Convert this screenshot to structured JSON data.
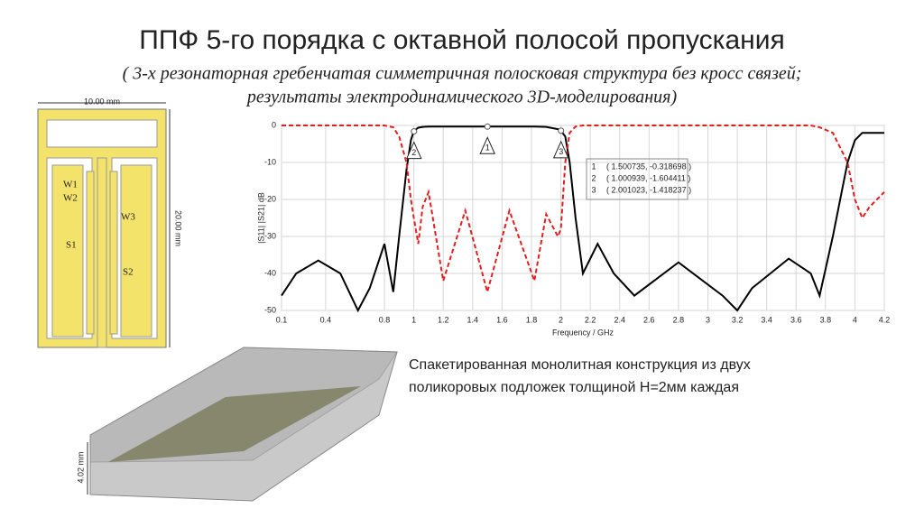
{
  "title": "ППФ 5-го порядка с октавной полосой пропускания",
  "subtitle": [
    "( 3-х резонаторная гребенчатая симметричная полосковая структура без кросс связей;",
    "результаты электродинамического 3D-моделирования)"
  ],
  "layout_drawing": {
    "width_label": "10.00 mm",
    "height_label": "20.00 mm",
    "labels": [
      "W1",
      "W2",
      "W3",
      "S1",
      "S2"
    ]
  },
  "model_3d": {
    "thickness_label": "4.02 mm"
  },
  "caption": [
    "Спакетированная монолитная конструкция из двух",
    "поликоровых подложек толщиной H=2мм каждая"
  ],
  "chart_data": {
    "type": "line",
    "xlabel": "Frequency / GHz",
    "ylabel": "|S11| |S21| dB",
    "x": [
      0.1,
      0.2,
      0.35,
      0.5,
      0.62,
      0.7,
      0.8,
      0.86,
      0.9,
      0.95,
      0.98,
      1.0,
      1.03,
      1.06,
      1.1,
      1.2,
      1.35,
      1.5,
      1.65,
      1.82,
      1.9,
      1.98,
      2.0,
      2.03,
      2.06,
      2.1,
      2.15,
      2.25,
      2.36,
      2.5,
      2.8,
      3.1,
      3.2,
      3.3,
      3.55,
      3.7,
      3.76,
      3.85,
      3.95,
      4.0,
      4.05,
      4.1,
      4.2
    ],
    "series": [
      {
        "name": "|S21|",
        "color": "#000000",
        "dash": false,
        "values": [
          -46,
          -40,
          -36.5,
          -40,
          -50,
          -44,
          -32,
          -45,
          -30,
          -12,
          -4,
          -1.5,
          -0.6,
          -0.4,
          -0.3,
          -0.3,
          -0.3,
          -0.3,
          -0.3,
          -0.3,
          -0.4,
          -1,
          -1.4,
          -3,
          -10,
          -25,
          -40,
          -32,
          -40,
          -46,
          -37,
          -46,
          -50,
          -44,
          -36,
          -40,
          -46,
          -30,
          -10,
          -4,
          -2,
          -2,
          -2
        ]
      },
      {
        "name": "|S11|",
        "color": "#e02020",
        "dash": true,
        "values": [
          0,
          0,
          0,
          0,
          0,
          0,
          0,
          -0.5,
          -3,
          -10,
          -20,
          -25,
          -32,
          -22,
          -18,
          -42,
          -23,
          -45,
          -23,
          -42,
          -24,
          -30,
          -28,
          -10,
          -2,
          -0.3,
          0,
          0,
          0,
          0,
          0,
          0,
          0,
          0,
          0,
          0,
          -0.5,
          -2,
          -10,
          -20,
          -25,
          -22,
          -18
        ]
      }
    ],
    "xlim": [
      0.1,
      4.2
    ],
    "ylim": [
      -50,
      0
    ],
    "xticks": [
      0.1,
      0.4,
      0.8,
      1,
      1.2,
      1.4,
      1.6,
      1.8,
      2,
      2.2,
      2.4,
      2.6,
      2.8,
      3,
      3.2,
      3.4,
      3.6,
      3.8,
      4,
      4.2
    ],
    "yticks": [
      0,
      -10,
      -20,
      -30,
      -40,
      -50
    ],
    "grid": true,
    "markers": [
      {
        "label": "1",
        "x": 1.500735,
        "y": -0.318698,
        "legend_text": "( 1.500735, -0.318698 )"
      },
      {
        "label": "2",
        "x": 1.000939,
        "y": -1.604411,
        "legend_text": "( 1.000939, -1.604411 )"
      },
      {
        "label": "3",
        "x": 2.001023,
        "y": -1.418237,
        "legend_text": "( 2.001023, -1.418237 )"
      }
    ]
  }
}
